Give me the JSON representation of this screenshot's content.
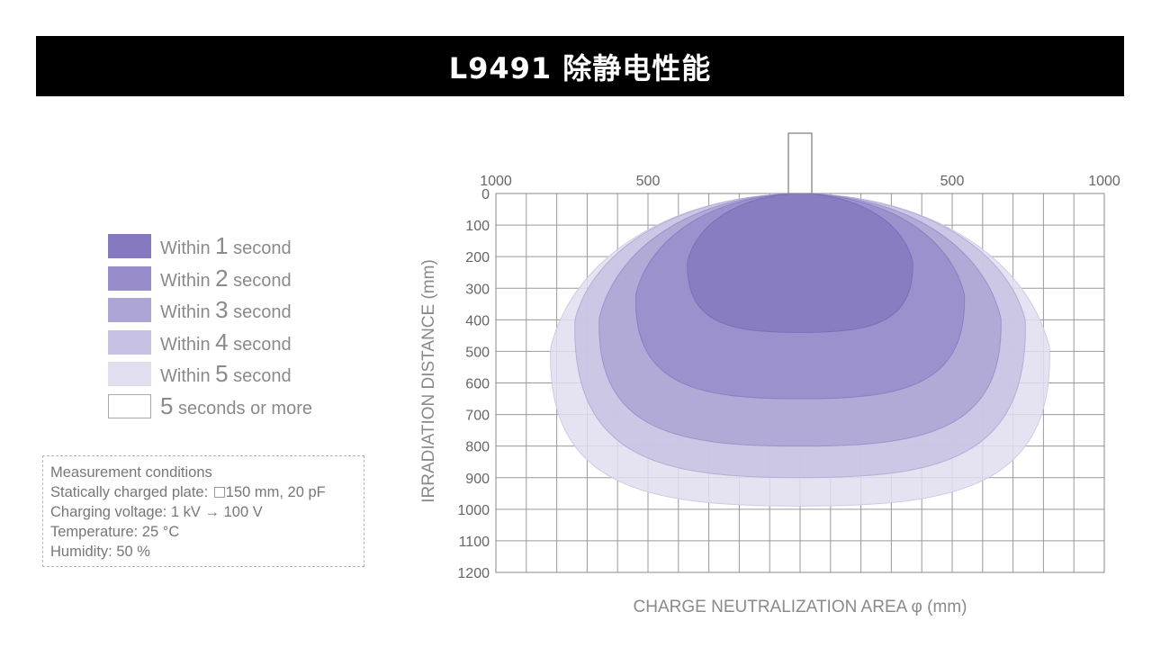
{
  "title": "L9491 除静电性能",
  "legend": {
    "items": [
      {
        "prefix": "Within ",
        "number": "1",
        "suffix": " second",
        "color": "#8679c0"
      },
      {
        "prefix": "Within ",
        "number": "2",
        "suffix": " second",
        "color": "#988dca"
      },
      {
        "prefix": "Within ",
        "number": "3",
        "suffix": " second",
        "color": "#ada5d5"
      },
      {
        "prefix": "Within ",
        "number": "4",
        "suffix": " second",
        "color": "#c7c2e3"
      },
      {
        "prefix": "Within ",
        "number": "5",
        "suffix": " second",
        "color": "#e1def0"
      },
      {
        "prefix": "",
        "number": "5",
        "suffix": " seconds or more",
        "color": "#ffffff"
      }
    ]
  },
  "conditions": {
    "heading": "Measurement conditions",
    "plate_prefix": "Statically charged plate: ",
    "plate_value": "150 mm, 20 pF",
    "voltage": "Charging voltage: 1 kV → 100 V",
    "temperature": "Temperature: 25 °C",
    "humidity": "Humidity: 50 %"
  },
  "chart_data": {
    "type": "area",
    "xlabel": "CHARGE NEUTRALIZATION AREA φ (mm)",
    "ylabel": "IRRADIATION DISTANCE (mm)",
    "x_ticks": [
      {
        "value": -1000,
        "label": "1000"
      },
      {
        "value": -500,
        "label": "500"
      },
      {
        "value": 500,
        "label": "500"
      },
      {
        "value": 1000,
        "label": "1000"
      }
    ],
    "xlim": [
      -1000,
      1000
    ],
    "ylim": [
      0,
      1200
    ],
    "y_ticks": [
      0,
      100,
      200,
      300,
      400,
      500,
      600,
      700,
      800,
      900,
      1000,
      1100,
      1200
    ],
    "grid": true,
    "series": [
      {
        "seconds": 5,
        "color": "#e1def0",
        "edge": "#cfcae6",
        "widest_distance": 490,
        "max_distance": 990,
        "half_width": 820
      },
      {
        "seconds": 4,
        "color": "#c7c2e3",
        "edge": "#b5aed8",
        "widest_distance": 400,
        "max_distance": 900,
        "half_width": 740
      },
      {
        "seconds": 3,
        "color": "#ada5d5",
        "edge": "#9c93cc",
        "widest_distance": 395,
        "max_distance": 800,
        "half_width": 660
      },
      {
        "seconds": 2,
        "color": "#988dca",
        "edge": "#8a7fc2",
        "widest_distance": 320,
        "max_distance": 650,
        "half_width": 540
      },
      {
        "seconds": 1,
        "color": "#8679c0",
        "edge": "#7b6eb8",
        "widest_distance": 215,
        "max_distance": 440,
        "half_width": 370
      }
    ]
  }
}
